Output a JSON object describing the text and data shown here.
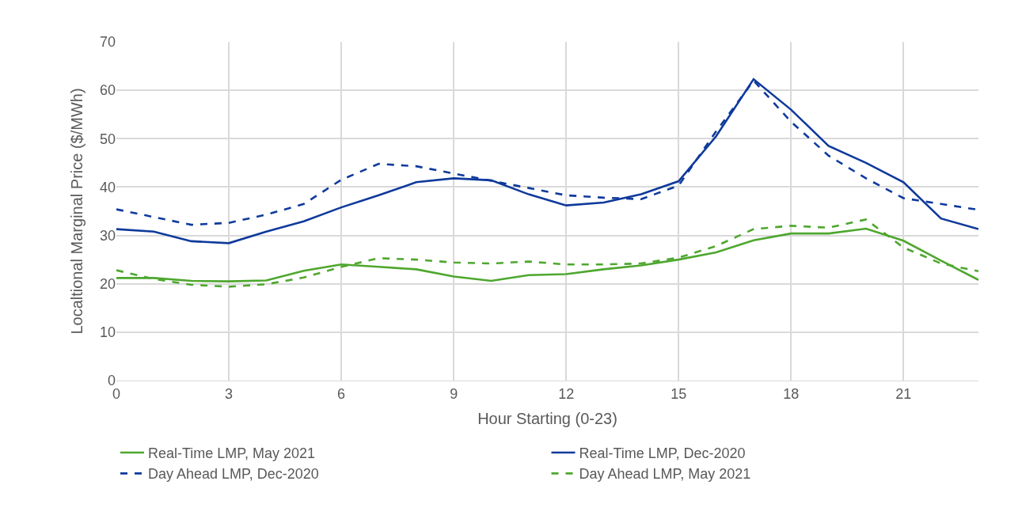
{
  "chart_data": {
    "type": "line",
    "xlabel": "Hour Starting (0-23)",
    "ylabel": "Localtional Marginal Price ($/MWh)",
    "x": [
      0,
      1,
      2,
      3,
      4,
      5,
      6,
      7,
      8,
      9,
      10,
      11,
      12,
      13,
      14,
      15,
      16,
      17,
      18,
      19,
      20,
      21,
      22,
      23
    ],
    "series": [
      {
        "name": "Real-Time LMP, May 2021",
        "color": "#4ea72e",
        "line_style": "solid",
        "values": [
          21.2,
          21.2,
          20.6,
          20.5,
          20.7,
          22.7,
          24.0,
          23.5,
          23.0,
          21.5,
          20.6,
          21.8,
          22.0,
          23.0,
          23.8,
          25.0,
          26.5,
          29.0,
          30.4,
          30.4,
          31.4,
          28.9,
          24.8,
          20.8
        ]
      },
      {
        "name": "Real-Time LMP, Dec-2020",
        "color": "#0f3a9c",
        "line_style": "solid",
        "values": [
          31.3,
          30.8,
          28.8,
          28.4,
          30.8,
          32.9,
          35.8,
          38.3,
          41.0,
          41.8,
          41.4,
          38.5,
          36.2,
          36.8,
          38.5,
          41.2,
          50.5,
          62.3,
          56.0,
          48.5,
          45.0,
          41.0,
          33.5,
          31.3
        ]
      },
      {
        "name": "Day Ahead LMP, Dec-2020",
        "color": "#0f3a9c",
        "line_style": "dashed",
        "values": [
          35.4,
          33.8,
          32.2,
          32.6,
          34.3,
          36.5,
          41.5,
          44.8,
          44.3,
          42.8,
          41.3,
          39.8,
          38.3,
          37.8,
          37.5,
          40.3,
          51.5,
          62.0,
          53.5,
          46.5,
          41.8,
          37.7,
          36.5,
          35.3
        ]
      },
      {
        "name": "Day Ahead LMP, May 2021",
        "color": "#4ea72e",
        "line_style": "dashed",
        "values": [
          22.8,
          21.0,
          19.8,
          19.4,
          19.9,
          21.3,
          23.5,
          25.3,
          25.0,
          24.4,
          24.2,
          24.6,
          24.0,
          24.0,
          24.2,
          25.4,
          27.8,
          31.3,
          32.0,
          31.6,
          33.3,
          27.5,
          24.2,
          22.6
        ]
      }
    ],
    "xlim": [
      0,
      23
    ],
    "xticks": [
      0,
      3,
      6,
      9,
      12,
      15,
      18,
      21
    ],
    "ylim": [
      0,
      70
    ],
    "yticks": [
      0,
      10,
      20,
      30,
      40,
      50,
      60,
      70
    ],
    "grid": true,
    "legend": "bottom",
    "marker": "none"
  }
}
